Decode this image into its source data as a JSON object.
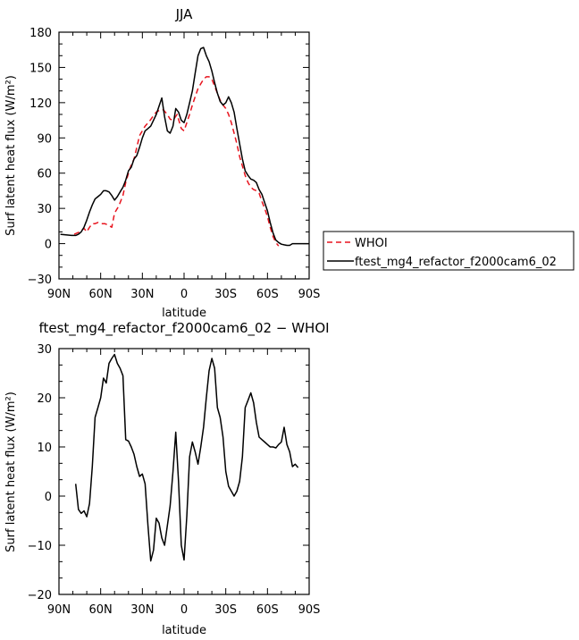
{
  "chart_data": [
    {
      "type": "line",
      "title": "JJA",
      "xlabel": "latitude",
      "ylabel": "Surf latent heat flux (W/m²)",
      "xlim": [
        90,
        -90
      ],
      "ylim": [
        -30,
        180
      ],
      "x_ticks": [
        90,
        60,
        30,
        0,
        -30,
        -60,
        -90
      ],
      "x_tick_labels": [
        "90N",
        "60N",
        "30N",
        "0",
        "30S",
        "60S",
        "90S"
      ],
      "y_ticks": [
        -30,
        0,
        30,
        60,
        90,
        120,
        150,
        180
      ],
      "y_tick_labels": [
        "−30",
        "0",
        "30",
        "60",
        "90",
        "120",
        "150",
        "180"
      ],
      "legend": "right-outside",
      "series": [
        {
          "name": "WHOI",
          "color": "#e8141e",
          "dash": "dashed",
          "points": [
            [
              79,
              8
            ],
            [
              75,
              10
            ],
            [
              72,
              13
            ],
            [
              70,
              10
            ],
            [
              68,
              14
            ],
            [
              66,
              17
            ],
            [
              64,
              17
            ],
            [
              62,
              18
            ],
            [
              60,
              17
            ],
            [
              57,
              17
            ],
            [
              55,
              16
            ],
            [
              52,
              14
            ],
            [
              50,
              26
            ],
            [
              47,
              32
            ],
            [
              44,
              41
            ],
            [
              42,
              52
            ],
            [
              40,
              60
            ],
            [
              38,
              67
            ],
            [
              36,
              72
            ],
            [
              34,
              82
            ],
            [
              32,
              92
            ],
            [
              30,
              96
            ],
            [
              28,
              100
            ],
            [
              25,
              104
            ],
            [
              22,
              109
            ],
            [
              20,
              112
            ],
            [
              17,
              114
            ],
            [
              15,
              114
            ],
            [
              12,
              110
            ],
            [
              10,
              106
            ],
            [
              8,
              105
            ],
            [
              5,
              110
            ],
            [
              3,
              102
            ],
            [
              2,
              98
            ],
            [
              0,
              96
            ],
            [
              -2,
              103
            ],
            [
              -4,
              110
            ],
            [
              -6,
              118
            ],
            [
              -8,
              125
            ],
            [
              -10,
              132
            ],
            [
              -12,
              136
            ],
            [
              -14,
              140
            ],
            [
              -16,
              142
            ],
            [
              -18,
              142
            ],
            [
              -20,
              140
            ],
            [
              -22,
              134
            ],
            [
              -24,
              128
            ],
            [
              -26,
              122
            ],
            [
              -28,
              118
            ],
            [
              -30,
              115
            ],
            [
              -32,
              110
            ],
            [
              -34,
              103
            ],
            [
              -36,
              94
            ],
            [
              -38,
              85
            ],
            [
              -40,
              74
            ],
            [
              -42,
              66
            ],
            [
              -44,
              58
            ],
            [
              -46,
              52
            ],
            [
              -48,
              48
            ],
            [
              -50,
              46
            ],
            [
              -52,
              45
            ],
            [
              -54,
              43
            ],
            [
              -56,
              36
            ],
            [
              -58,
              30
            ],
            [
              -60,
              23
            ],
            [
              -62,
              14
            ],
            [
              -64,
              6
            ],
            [
              -66,
              1
            ],
            [
              -68,
              -2
            ]
          ]
        },
        {
          "name": "ftest_mg4_refactor_f2000cam6_02",
          "color": "#000000",
          "dash": "solid",
          "points": [
            [
              89,
              8
            ],
            [
              85,
              7.5
            ],
            [
              81,
              7
            ],
            [
              78,
              7
            ],
            [
              76,
              8
            ],
            [
              74,
              10
            ],
            [
              72,
              14
            ],
            [
              70,
              20
            ],
            [
              68,
              27
            ],
            [
              66,
              33
            ],
            [
              64,
              38
            ],
            [
              62,
              40
            ],
            [
              60,
              42
            ],
            [
              58,
              45
            ],
            [
              56,
              45
            ],
            [
              54,
              44
            ],
            [
              52,
              41
            ],
            [
              50,
              37
            ],
            [
              48,
              40
            ],
            [
              46,
              44
            ],
            [
              44,
              48
            ],
            [
              42,
              54
            ],
            [
              40,
              62
            ],
            [
              38,
              65
            ],
            [
              36,
              72
            ],
            [
              34,
              75
            ],
            [
              32,
              82
            ],
            [
              30,
              90
            ],
            [
              28,
              96
            ],
            [
              26,
              98
            ],
            [
              24,
              100
            ],
            [
              22,
              105
            ],
            [
              20,
              110
            ],
            [
              18,
              117
            ],
            [
              16,
              124
            ],
            [
              14,
              108
            ],
            [
              12,
              96
            ],
            [
              10,
              94
            ],
            [
              8,
              100
            ],
            [
              6,
              115
            ],
            [
              4,
              112
            ],
            [
              2,
              105
            ],
            [
              0,
              103
            ],
            [
              -2,
              110
            ],
            [
              -4,
              120
            ],
            [
              -6,
              130
            ],
            [
              -8,
              145
            ],
            [
              -10,
              160
            ],
            [
              -12,
              166
            ],
            [
              -14,
              167
            ],
            [
              -16,
              160
            ],
            [
              -18,
              155
            ],
            [
              -20,
              147
            ],
            [
              -22,
              137
            ],
            [
              -24,
              128
            ],
            [
              -26,
              121
            ],
            [
              -28,
              118
            ],
            [
              -30,
              120
            ],
            [
              -32,
              125
            ],
            [
              -34,
              120
            ],
            [
              -36,
              112
            ],
            [
              -38,
              98
            ],
            [
              -40,
              85
            ],
            [
              -42,
              72
            ],
            [
              -44,
              62
            ],
            [
              -46,
              58
            ],
            [
              -48,
              55
            ],
            [
              -50,
              54
            ],
            [
              -52,
              52
            ],
            [
              -54,
              46
            ],
            [
              -56,
              42
            ],
            [
              -58,
              35
            ],
            [
              -60,
              28
            ],
            [
              -62,
              18
            ],
            [
              -64,
              9
            ],
            [
              -66,
              3
            ],
            [
              -68,
              1
            ],
            [
              -70,
              -0.5
            ],
            [
              -72,
              -1
            ],
            [
              -74,
              -1.5
            ],
            [
              -76,
              -1.5
            ],
            [
              -78,
              0
            ],
            [
              -80,
              0
            ],
            [
              -84,
              0
            ],
            [
              -90,
              0
            ]
          ]
        }
      ]
    },
    {
      "type": "line",
      "title": "ftest_mg4_refactor_f2000cam6_02 − WHOI",
      "xlabel": "latitude",
      "ylabel": "Surf latent heat flux (W/m²)",
      "xlim": [
        90,
        -90
      ],
      "ylim": [
        -20,
        30
      ],
      "x_ticks": [
        90,
        60,
        30,
        0,
        -30,
        -60,
        -90
      ],
      "x_tick_labels": [
        "90N",
        "60N",
        "30N",
        "0",
        "30S",
        "60S",
        "90S"
      ],
      "y_ticks": [
        -20,
        -10,
        0,
        10,
        20,
        30
      ],
      "y_tick_labels": [
        "−20",
        "−10",
        "0",
        "10",
        "20",
        "30"
      ],
      "series": [
        {
          "color": "#000000",
          "dash": "solid",
          "points": [
            [
              78,
              2.5
            ],
            [
              76,
              -2.7
            ],
            [
              74,
              -3.5
            ],
            [
              72,
              -3
            ],
            [
              70,
              -4.2
            ],
            [
              68,
              -1.5
            ],
            [
              66,
              6
            ],
            [
              64,
              16
            ],
            [
              62,
              18
            ],
            [
              60,
              20
            ],
            [
              58,
              24
            ],
            [
              56,
              23
            ],
            [
              54,
              27
            ],
            [
              52,
              28
            ],
            [
              50,
              28.8
            ],
            [
              48,
              27
            ],
            [
              46,
              26
            ],
            [
              44,
              24.5
            ],
            [
              42,
              11.5
            ],
            [
              40,
              11.2
            ],
            [
              38,
              10
            ],
            [
              36,
              8.5
            ],
            [
              34,
              6
            ],
            [
              32,
              4
            ],
            [
              30,
              4.5
            ],
            [
              28,
              2.5
            ],
            [
              26,
              -6
            ],
            [
              24,
              -13.2
            ],
            [
              22,
              -11
            ],
            [
              20,
              -4.5
            ],
            [
              18,
              -5.5
            ],
            [
              16,
              -8.5
            ],
            [
              14,
              -10
            ],
            [
              12,
              -6
            ],
            [
              10,
              -2
            ],
            [
              8,
              5
            ],
            [
              6,
              13
            ],
            [
              4,
              3
            ],
            [
              2,
              -10
            ],
            [
              0,
              -13
            ],
            [
              -2,
              -4
            ],
            [
              -4,
              8
            ],
            [
              -6,
              11
            ],
            [
              -8,
              9
            ],
            [
              -10,
              6.5
            ],
            [
              -12,
              10
            ],
            [
              -14,
              14
            ],
            [
              -16,
              20
            ],
            [
              -18,
              25.5
            ],
            [
              -20,
              28
            ],
            [
              -22,
              26
            ],
            [
              -24,
              18
            ],
            [
              -26,
              16
            ],
            [
              -28,
              12
            ],
            [
              -30,
              5
            ],
            [
              -32,
              2
            ],
            [
              -34,
              1
            ],
            [
              -36,
              0
            ],
            [
              -38,
              1
            ],
            [
              -40,
              3
            ],
            [
              -42,
              8
            ],
            [
              -44,
              18
            ],
            [
              -46,
              19.5
            ],
            [
              -48,
              21
            ],
            [
              -50,
              19
            ],
            [
              -52,
              15
            ],
            [
              -54,
              12
            ],
            [
              -56,
              11.5
            ],
            [
              -58,
              11
            ],
            [
              -60,
              10.5
            ],
            [
              -62,
              10
            ],
            [
              -64,
              10
            ],
            [
              -66,
              9.8
            ],
            [
              -68,
              10.5
            ],
            [
              -70,
              11
            ],
            [
              -72,
              14
            ],
            [
              -74,
              10.5
            ],
            [
              -76,
              9
            ],
            [
              -78,
              6
            ],
            [
              -80,
              6.5
            ],
            [
              -82,
              5.8
            ]
          ]
        }
      ]
    }
  ]
}
